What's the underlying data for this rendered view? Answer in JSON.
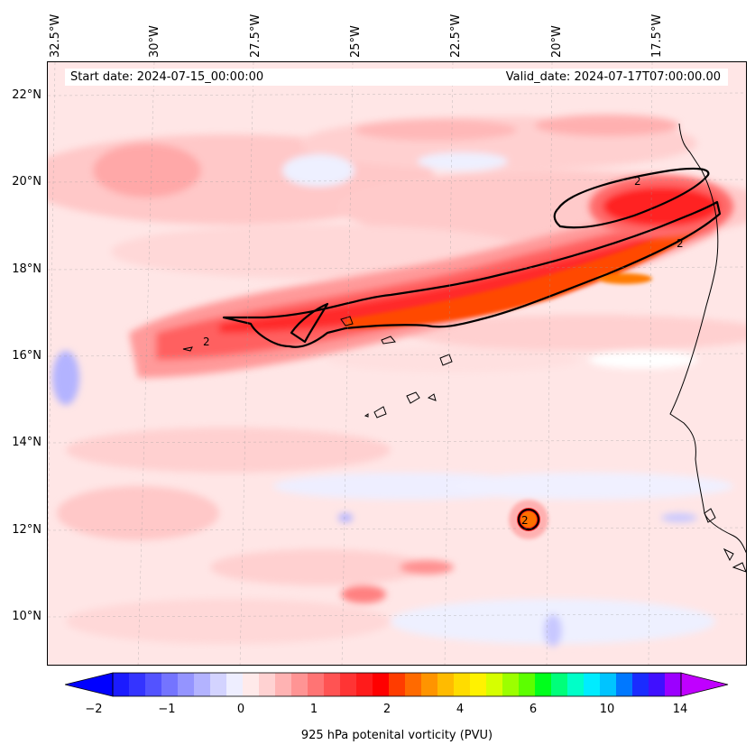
{
  "header": {
    "start_date": "Start date: 2024-07-15_00:00:00",
    "valid_date": "Valid_date: 2024-07-17T07:00:00.00"
  },
  "longitude_labels": [
    "32.5°W",
    "30°W",
    "27.5°W",
    "25°W",
    "22.5°W",
    "20°W",
    "17.5°W"
  ],
  "latitude_labels": [
    "22°N",
    "20°N",
    "18°N",
    "16°N",
    "14°N",
    "12°N",
    "10°N"
  ],
  "contour_label": "2",
  "colorbar": {
    "label": "925 hPa potenital vorticity (PVU)",
    "ticks": [
      "−2",
      "−1",
      "0",
      "1",
      "2",
      "4",
      "6",
      "10",
      "14"
    ],
    "colors": [
      "#1b1bff",
      "#3434ff",
      "#5353ff",
      "#7474ff",
      "#9494ff",
      "#b3b3ff",
      "#d3d3ff",
      "#eeeeff",
      "#ffeaea",
      "#ffd2d2",
      "#ffb3b3",
      "#ff9494",
      "#ff7474",
      "#ff5353",
      "#ff3434",
      "#ff1b1b",
      "#ff0000",
      "#ff3c00",
      "#ff6a00",
      "#ff9400",
      "#ffbb00",
      "#ffdc00",
      "#fff200",
      "#d6ff00",
      "#9cff00",
      "#5cff00",
      "#00ff1c",
      "#00ff7a",
      "#00ffc8",
      "#00ecff",
      "#00c4ff",
      "#0078ff",
      "#1a2cff",
      "#4010ff",
      "#9b00ff"
    ],
    "under_color": "#0000ff",
    "over_color": "#c000ff"
  },
  "map": {
    "background_color": "#ffe6e6",
    "contour_color": "#000000",
    "features": [
      "Saharan dust / African easterly wave PV streak",
      "Cabo Verde islands",
      "West African coastline"
    ]
  }
}
